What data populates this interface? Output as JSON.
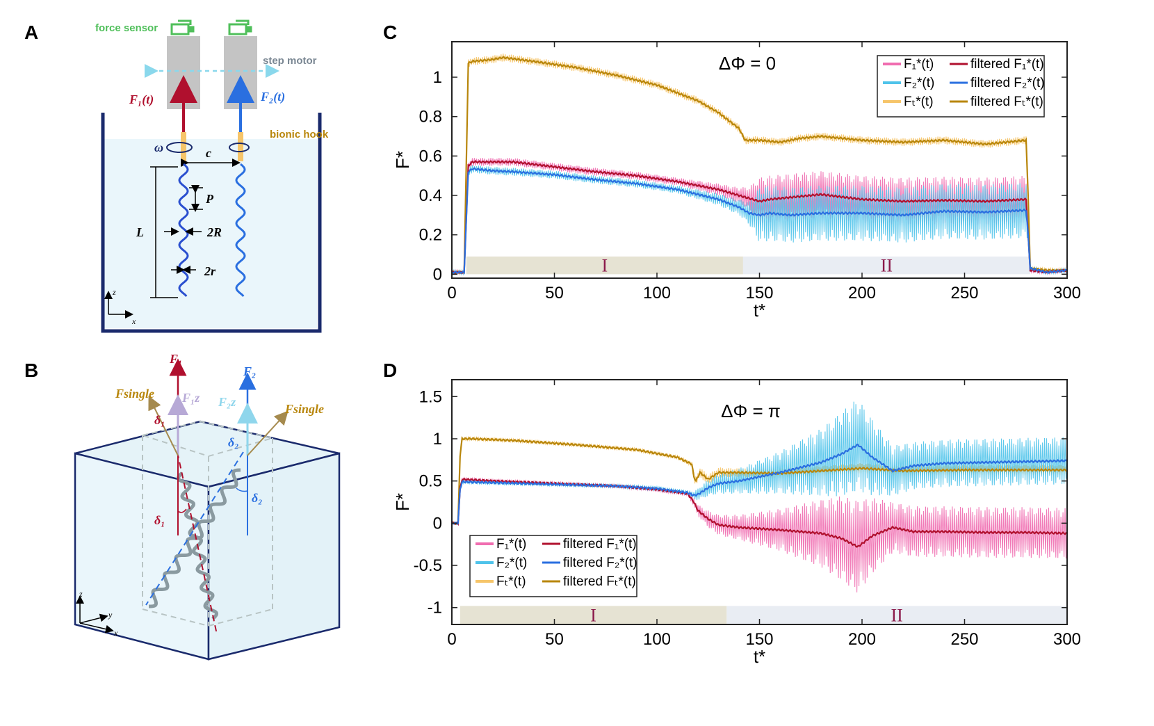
{
  "panels": {
    "a": "A",
    "b": "B",
    "c": "C",
    "d": "D"
  },
  "colors": {
    "f1_raw": "#f06db0",
    "f1_filt": "#b0102e",
    "f2_raw": "#4fc3ea",
    "f2_filt": "#2a6fe0",
    "ft_raw": "#f6c56a",
    "ft_filt": "#b8860b",
    "region1": "#e6e3d3",
    "region2": "#e9edf3",
    "water": "#eaf6fb",
    "tank": "#1a2a6c"
  },
  "schematic_a": {
    "force_sensor": "force sensor",
    "step_motor": "step motor",
    "bionic_hook": "bionic hook",
    "f1": "F₁(t)",
    "f2": "F₂(t)",
    "omega": "ω",
    "c": "c",
    "P": "P",
    "L": "L",
    "two_R": "2R",
    "two_r": "2r",
    "z": "z",
    "x": "x"
  },
  "schematic_b": {
    "f1": "F₁",
    "f2": "F₂",
    "f1z": "F₁z",
    "f2z": "F₂z",
    "fsingle_left": "Fsingle",
    "fsingle_right": "Fsingle",
    "delta1_top": "δ₁",
    "delta2_top": "δ₂",
    "delta1_low": "δ₁",
    "delta2_low": "δ₂",
    "z": "z",
    "y": "y",
    "x": "x"
  },
  "chart_data": [
    {
      "type": "line",
      "panel": "C",
      "title": "ΔΦ = 0",
      "xlabel": "t*",
      "ylabel": "F*",
      "xlim": [
        0,
        300
      ],
      "ylim": [
        -0.02,
        1.18
      ],
      "xticks": [
        0,
        50,
        100,
        150,
        200,
        250,
        300
      ],
      "xtick_labels": [
        "0",
        "50",
        "100",
        "150",
        "200",
        "250",
        "300"
      ],
      "yticks": [
        0,
        0.2,
        0.4,
        0.6,
        0.8,
        1
      ],
      "ytick_labels": [
        "0",
        "0.2",
        "0.4",
        "0.6",
        "0.8",
        "1"
      ],
      "legend_position": "top-right",
      "legend": [
        "F₁*(t)",
        "filtered F₁*(t)",
        "F₂*(t)",
        "filtered F₂*(t)",
        "Fₜ*(t)",
        "filtered Fₜ*(t)"
      ],
      "regions": [
        {
          "label": "I",
          "start": 7,
          "end": 142,
          "ymin": 0,
          "ymax": 0.09
        },
        {
          "label": "II",
          "start": 142,
          "end": 282,
          "ymin": 0,
          "ymax": 0.09
        }
      ],
      "series": [
        {
          "name": "filtered F₁*(t)",
          "x": [
            0,
            6,
            8,
            10,
            20,
            30,
            50,
            70,
            90,
            110,
            130,
            140,
            145,
            150,
            155,
            165,
            180,
            200,
            220,
            240,
            260,
            280,
            281,
            282,
            290,
            300
          ],
          "y": [
            0.01,
            0.01,
            0.55,
            0.57,
            0.57,
            0.57,
            0.545,
            0.52,
            0.5,
            0.47,
            0.43,
            0.4,
            0.385,
            0.37,
            0.38,
            0.39,
            0.405,
            0.38,
            0.37,
            0.375,
            0.37,
            0.38,
            0.2,
            0.02,
            0.01,
            0.02
          ],
          "noise_amp": [
            0.01,
            0.01,
            0.02,
            0.02,
            0.02,
            0.02,
            0.02,
            0.02,
            0.02,
            0.02,
            0.03,
            0.04,
            0.06,
            0.12,
            0.12,
            0.12,
            0.12,
            0.12,
            0.12,
            0.12,
            0.12,
            0.12,
            0.02,
            0.01,
            0.01,
            0.01
          ]
        },
        {
          "name": "filtered F₂*(t)",
          "x": [
            0,
            6,
            8,
            10,
            20,
            30,
            50,
            70,
            90,
            110,
            130,
            140,
            145,
            150,
            155,
            165,
            180,
            200,
            220,
            240,
            260,
            280,
            281,
            282,
            290,
            300
          ],
          "y": [
            0.01,
            0.01,
            0.52,
            0.535,
            0.525,
            0.52,
            0.505,
            0.48,
            0.46,
            0.43,
            0.38,
            0.34,
            0.31,
            0.3,
            0.31,
            0.3,
            0.31,
            0.31,
            0.3,
            0.32,
            0.315,
            0.325,
            0.2,
            0.03,
            0.01,
            0.02
          ],
          "noise_amp": [
            0.01,
            0.01,
            0.02,
            0.02,
            0.02,
            0.02,
            0.02,
            0.02,
            0.02,
            0.02,
            0.03,
            0.04,
            0.06,
            0.14,
            0.14,
            0.14,
            0.14,
            0.14,
            0.14,
            0.14,
            0.14,
            0.14,
            0.02,
            0.01,
            0.01,
            0.01
          ]
        },
        {
          "name": "filtered Fₜ*(t)",
          "x": [
            0,
            6,
            8,
            10,
            20,
            25,
            40,
            60,
            80,
            100,
            120,
            130,
            140,
            143,
            150,
            160,
            170,
            180,
            200,
            220,
            240,
            260,
            270,
            280,
            281,
            282,
            290,
            300
          ],
          "y": [
            0.01,
            0.01,
            1.07,
            1.08,
            1.09,
            1.1,
            1.08,
            1.05,
            1.01,
            0.96,
            0.88,
            0.82,
            0.74,
            0.68,
            0.68,
            0.67,
            0.69,
            0.7,
            0.68,
            0.67,
            0.68,
            0.66,
            0.67,
            0.68,
            0.4,
            0.03,
            0.02,
            0.02
          ],
          "noise_amp": [
            0.01,
            0.01,
            0.02,
            0.02,
            0.02,
            0.02,
            0.02,
            0.02,
            0.02,
            0.02,
            0.02,
            0.02,
            0.02,
            0.02,
            0.02,
            0.02,
            0.02,
            0.02,
            0.02,
            0.02,
            0.02,
            0.02,
            0.02,
            0.02,
            0.02,
            0.01,
            0.01,
            0.01
          ]
        }
      ]
    },
    {
      "type": "line",
      "panel": "D",
      "title": "ΔΦ = π",
      "xlabel": "t*",
      "ylabel": "F*",
      "xlim": [
        0,
        300
      ],
      "ylim": [
        -1.2,
        1.7
      ],
      "xticks": [
        0,
        50,
        100,
        150,
        200,
        250,
        300
      ],
      "xtick_labels": [
        "0",
        "50",
        "100",
        "150",
        "200",
        "250",
        "300"
      ],
      "yticks": [
        -1,
        -0.5,
        0,
        0.5,
        1,
        1.5
      ],
      "ytick_labels": [
        "-1",
        "-0.5",
        "0",
        "0.5",
        "1",
        "1.5"
      ],
      "legend_position": "bottom-left",
      "legend": [
        "F₁*(t)",
        "filtered F₁*(t)",
        "F₂*(t)",
        "filtered F₂*(t)",
        "Fₜ*(t)",
        "filtered Fₜ*(t)"
      ],
      "regions": [
        {
          "label": "I",
          "start": 4,
          "end": 134,
          "ymin": -1.2,
          "ymax": -0.98
        },
        {
          "label": "II",
          "start": 134,
          "end": 300,
          "ymin": -1.2,
          "ymax": -0.98
        }
      ],
      "series": [
        {
          "name": "filtered F₁*(t)",
          "x": [
            0,
            3,
            4,
            5,
            20,
            50,
            80,
            100,
            115,
            118,
            120,
            125,
            130,
            140,
            160,
            180,
            190,
            198,
            205,
            215,
            225,
            240,
            260,
            280,
            300
          ],
          "y": [
            0,
            0,
            0.4,
            0.52,
            0.5,
            0.47,
            0.44,
            0.4,
            0.35,
            0.25,
            0.15,
            0.05,
            -0.02,
            -0.05,
            -0.08,
            -0.12,
            -0.18,
            -0.28,
            -0.15,
            -0.05,
            -0.1,
            -0.1,
            -0.11,
            -0.11,
            -0.12
          ],
          "noise_amp": [
            0,
            0,
            0.02,
            0.02,
            0.02,
            0.02,
            0.02,
            0.03,
            0.03,
            0.05,
            0.07,
            0.1,
            0.12,
            0.15,
            0.25,
            0.4,
            0.5,
            0.55,
            0.45,
            0.3,
            0.3,
            0.3,
            0.3,
            0.3,
            0.3
          ]
        },
        {
          "name": "filtered F₂*(t)",
          "x": [
            0,
            3,
            4,
            5,
            20,
            50,
            80,
            100,
            115,
            118,
            120,
            125,
            130,
            140,
            160,
            180,
            190,
            198,
            205,
            215,
            225,
            240,
            260,
            280,
            300
          ],
          "y": [
            0,
            0,
            0.4,
            0.49,
            0.48,
            0.46,
            0.44,
            0.41,
            0.36,
            0.33,
            0.34,
            0.42,
            0.47,
            0.5,
            0.6,
            0.72,
            0.82,
            0.93,
            0.78,
            0.62,
            0.68,
            0.71,
            0.72,
            0.73,
            0.74
          ],
          "noise_amp": [
            0,
            0,
            0.02,
            0.02,
            0.02,
            0.02,
            0.02,
            0.03,
            0.03,
            0.05,
            0.07,
            0.1,
            0.12,
            0.15,
            0.25,
            0.4,
            0.5,
            0.55,
            0.45,
            0.3,
            0.28,
            0.28,
            0.28,
            0.28,
            0.28
          ]
        },
        {
          "name": "filtered Fₜ*(t)",
          "x": [
            0,
            3,
            4,
            5,
            10,
            30,
            60,
            90,
            110,
            117,
            118,
            119,
            121,
            125,
            130,
            140,
            160,
            180,
            200,
            220,
            250,
            280,
            300
          ],
          "y": [
            0,
            0,
            0.8,
            1.0,
            1.0,
            0.98,
            0.93,
            0.87,
            0.78,
            0.7,
            0.55,
            0.5,
            0.6,
            0.52,
            0.6,
            0.6,
            0.59,
            0.62,
            0.65,
            0.62,
            0.63,
            0.63,
            0.63
          ],
          "noise_amp": [
            0,
            0,
            0.02,
            0.02,
            0.02,
            0.02,
            0.02,
            0.02,
            0.02,
            0.03,
            0.05,
            0.06,
            0.06,
            0.06,
            0.06,
            0.05,
            0.06,
            0.06,
            0.06,
            0.06,
            0.06,
            0.06,
            0.06
          ]
        }
      ]
    }
  ]
}
